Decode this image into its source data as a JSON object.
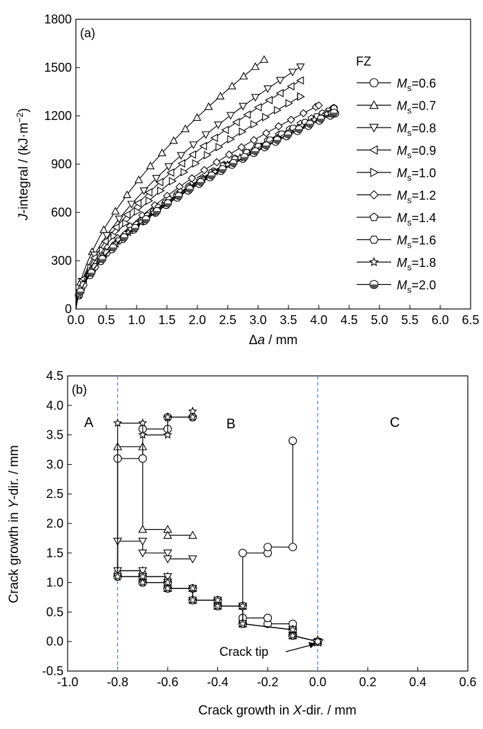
{
  "figure": {
    "panel_a": {
      "label": "(a)",
      "legend_title": "FZ",
      "xlabel_prefix": "Δ",
      "xlabel_var": "a",
      "xlabel_suffix": " / mm",
      "ylabel_prefix": "J",
      "ylabel_mid": "-integral / (kJ·m",
      "ylabel_sup": "−2",
      "ylabel_end": ")"
    },
    "panel_b": {
      "label": "(b)",
      "xlabel_pre": "Crack growth in ",
      "xlabel_var": "X",
      "xlabel_post": "-dir. / mm",
      "ylabel_pre": "Crack growth in ",
      "ylabel_var": "Y",
      "ylabel_post": "-dir. / mm",
      "region_a": "A",
      "region_b": "B",
      "region_c": "C",
      "annotation": "Crack tip"
    }
  },
  "chart_data": [
    {
      "type": "line",
      "panel": "(a)",
      "xlabel": "Δa / mm",
      "ylabel": "J-integral / (kJ·m−2)",
      "xlim": [
        0,
        6.5
      ],
      "ylim": [
        0,
        1800
      ],
      "xticks": [
        "0.0",
        "0.5",
        "1.0",
        "1.5",
        "2.0",
        "2.5",
        "3.0",
        "3.5",
        "4.0",
        "4.5",
        "5.0",
        "5.5",
        "6.0",
        "6.5"
      ],
      "yticks": [
        "0",
        "300",
        "600",
        "900",
        "1200",
        "1500",
        "1800"
      ],
      "legend_title": "FZ",
      "legend_position": "right",
      "series": [
        {
          "name": "Ms=0.6",
          "marker": "circle",
          "x_end": 4.27,
          "y_end": 1215
        },
        {
          "name": "Ms=0.7",
          "marker": "triangle-up",
          "x_end": 3.1,
          "y_end": 1550
        },
        {
          "name": "Ms=0.8",
          "marker": "triangle-down",
          "x_end": 3.7,
          "y_end": 1505
        },
        {
          "name": "Ms=0.9",
          "marker": "triangle-left",
          "x_end": 3.7,
          "y_end": 1420
        },
        {
          "name": "Ms=1.0",
          "marker": "triangle-right",
          "x_end": 3.7,
          "y_end": 1320
        },
        {
          "name": "Ms=1.2",
          "marker": "diamond",
          "x_end": 4.0,
          "y_end": 1265
        },
        {
          "name": "Ms=1.4",
          "marker": "pentagon",
          "x_end": 4.25,
          "y_end": 1250
        },
        {
          "name": "Ms=1.6",
          "marker": "hexagon",
          "x_end": 4.25,
          "y_end": 1245
        },
        {
          "name": "Ms=1.8",
          "marker": "star",
          "x_end": 4.2,
          "y_end": 1225
        },
        {
          "name": "Ms=2.0",
          "marker": "half-circle",
          "x_end": 4.25,
          "y_end": 1220
        }
      ]
    },
    {
      "type": "line",
      "panel": "(b)",
      "xlabel": "Crack growth in X-dir. / mm",
      "ylabel": "Crack growth in Y-dir. / mm",
      "xlim": [
        -1.0,
        0.6
      ],
      "ylim": [
        -0.5,
        4.5
      ],
      "xticks": [
        "-1.0",
        "-0.8",
        "-0.6",
        "-0.4",
        "-0.2",
        "0.0",
        "0.2",
        "0.4",
        "0.6"
      ],
      "yticks": [
        "-0.5",
        "0.0",
        "0.5",
        "1.0",
        "1.5",
        "2.0",
        "2.5",
        "3.0",
        "3.5",
        "4.0",
        "4.5"
      ],
      "vertical_lines": [
        -0.8,
        0.0
      ],
      "regions": [
        "A",
        "B",
        "C"
      ],
      "annotation": {
        "text": "Crack tip",
        "x": 0.0,
        "y": 0.0
      },
      "paths": [
        {
          "marker": "circle",
          "points": [
            [
              0.0,
              0.0
            ],
            [
              -0.1,
              0.1
            ],
            [
              -0.1,
              0.3
            ],
            [
              -0.2,
              0.3
            ],
            [
              -0.2,
              0.4
            ],
            [
              -0.3,
              0.4
            ],
            [
              -0.3,
              1.5
            ],
            [
              -0.2,
              1.5
            ],
            [
              -0.2,
              1.6
            ],
            [
              -0.1,
              1.6
            ],
            [
              -0.1,
              3.4
            ]
          ]
        },
        {
          "marker": "triangle-up",
          "points": [
            [
              0.0,
              0.0
            ],
            [
              -0.1,
              0.1
            ],
            [
              -0.1,
              0.2
            ],
            [
              -0.3,
              0.3
            ],
            [
              -0.3,
              0.6
            ],
            [
              -0.4,
              0.6
            ],
            [
              -0.4,
              0.7
            ],
            [
              -0.5,
              0.7
            ],
            [
              -0.5,
              0.9
            ],
            [
              -0.6,
              0.9
            ],
            [
              -0.6,
              1.1
            ],
            [
              -0.7,
              1.1
            ],
            [
              -0.7,
              1.2
            ],
            [
              -0.8,
              1.2
            ],
            [
              -0.8,
              3.3
            ],
            [
              -0.7,
              3.3
            ],
            [
              -0.7,
              1.9
            ],
            [
              -0.6,
              1.9
            ],
            [
              -0.6,
              1.8
            ],
            [
              -0.5,
              1.8
            ]
          ]
        },
        {
          "marker": "triangle-down",
          "points": [
            [
              0.0,
              0.0
            ],
            [
              -0.1,
              0.1
            ],
            [
              -0.1,
              0.2
            ],
            [
              -0.3,
              0.3
            ],
            [
              -0.3,
              0.6
            ],
            [
              -0.4,
              0.6
            ],
            [
              -0.4,
              0.7
            ],
            [
              -0.5,
              0.7
            ],
            [
              -0.5,
              0.9
            ],
            [
              -0.6,
              0.9
            ],
            [
              -0.6,
              1.1
            ],
            [
              -0.7,
              1.1
            ],
            [
              -0.7,
              1.2
            ],
            [
              -0.8,
              1.2
            ],
            [
              -0.8,
              1.7
            ],
            [
              -0.7,
              1.7
            ],
            [
              -0.7,
              1.5
            ],
            [
              -0.6,
              1.5
            ],
            [
              -0.6,
              1.4
            ],
            [
              -0.5,
              1.4
            ]
          ]
        },
        {
          "marker": "circle",
          "points": [
            [
              0.0,
              0.0
            ],
            [
              -0.1,
              0.1
            ],
            [
              -0.1,
              0.2
            ],
            [
              -0.3,
              0.3
            ],
            [
              -0.3,
              0.6
            ],
            [
              -0.4,
              0.6
            ],
            [
              -0.4,
              0.7
            ],
            [
              -0.5,
              0.7
            ],
            [
              -0.5,
              0.9
            ],
            [
              -0.6,
              0.9
            ],
            [
              -0.6,
              1.0
            ],
            [
              -0.7,
              1.0
            ],
            [
              -0.7,
              1.1
            ],
            [
              -0.8,
              1.1
            ],
            [
              -0.8,
              3.1
            ],
            [
              -0.7,
              3.1
            ],
            [
              -0.7,
              3.6
            ],
            [
              -0.6,
              3.6
            ],
            [
              -0.6,
              3.8
            ],
            [
              -0.5,
              3.8
            ]
          ]
        },
        {
          "marker": "star",
          "points": [
            [
              0.0,
              0.0
            ],
            [
              -0.1,
              0.1
            ],
            [
              -0.1,
              0.2
            ],
            [
              -0.3,
              0.3
            ],
            [
              -0.3,
              0.6
            ],
            [
              -0.4,
              0.6
            ],
            [
              -0.4,
              0.7
            ],
            [
              -0.5,
              0.7
            ],
            [
              -0.5,
              0.9
            ],
            [
              -0.6,
              0.9
            ],
            [
              -0.6,
              1.0
            ],
            [
              -0.7,
              1.0
            ],
            [
              -0.7,
              1.1
            ],
            [
              -0.8,
              1.1
            ],
            [
              -0.8,
              3.7
            ],
            [
              -0.7,
              3.7
            ],
            [
              -0.7,
              3.5
            ],
            [
              -0.6,
              3.5
            ],
            [
              -0.6,
              3.8
            ],
            [
              -0.5,
              3.8
            ],
            [
              -0.5,
              3.9
            ]
          ]
        }
      ]
    }
  ]
}
